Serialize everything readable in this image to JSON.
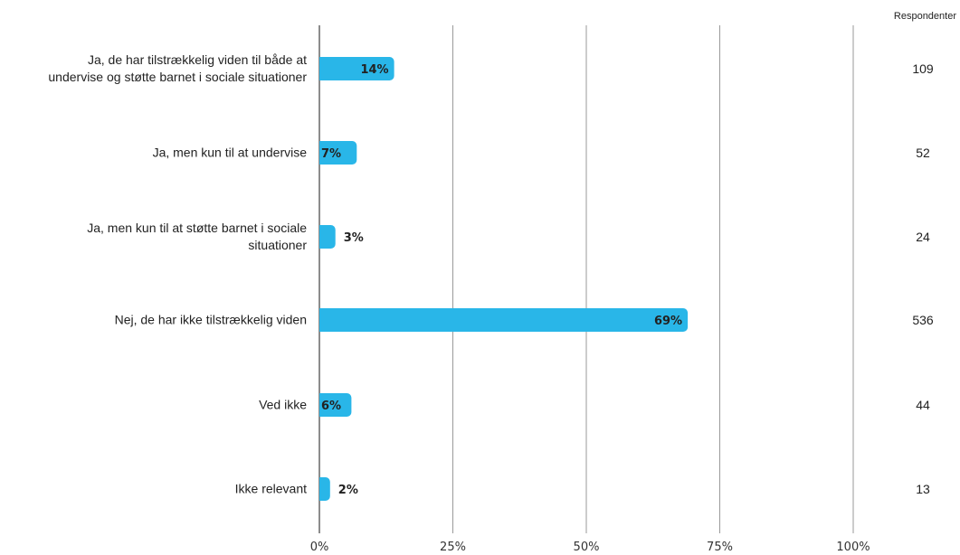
{
  "chart_data": {
    "type": "bar",
    "orientation": "horizontal",
    "categories": [
      "Ja, de har tilstrækkelig viden til både at undervise og støtte barnet i sociale situationer",
      "Ja, men kun til at undervise",
      "Ja, men kun til at støtte barnet i sociale situationer",
      "Nej, de har ikke tilstrækkelig viden",
      "Ved ikke",
      "Ikke relevant"
    ],
    "values": [
      14,
      7,
      3,
      69,
      6,
      2
    ],
    "value_labels": [
      "14%",
      "7%",
      "3%",
      "69%",
      "6%",
      "2%"
    ],
    "respondents_header": "Respondenter",
    "respondents": [
      "109",
      "52",
      "24",
      "536",
      "44",
      "13"
    ],
    "xlim": [
      0,
      100
    ],
    "xticks": [
      "0%",
      "25%",
      "50%",
      "75%",
      "100%"
    ],
    "grid": true,
    "colors": {
      "bar": "#29b6e8",
      "grid": "#9a9a9a",
      "axis": "#666666"
    }
  }
}
